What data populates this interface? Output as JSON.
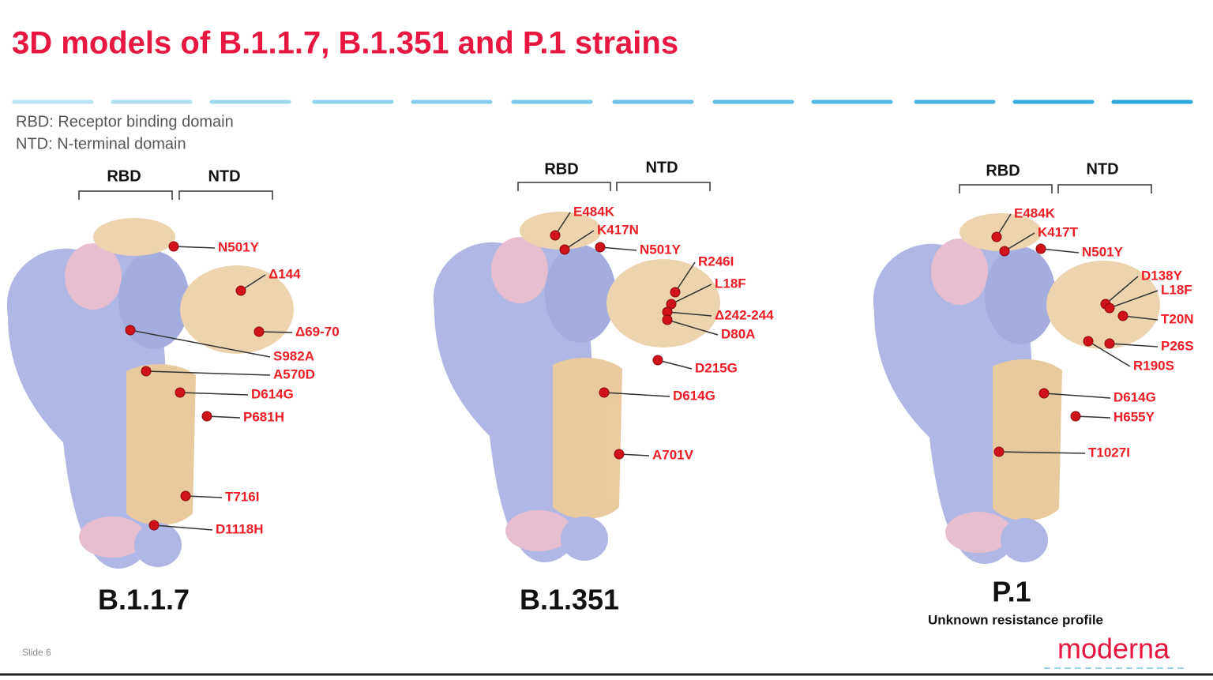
{
  "title": "3D models of B.1.1.7, B.1.351 and P.1 strains",
  "legend": [
    "RBD: Receptor binding domain",
    "NTD: N-terminal domain"
  ],
  "models": [
    {
      "name": "B.1.1.7",
      "domains": [
        "RBD",
        "NTD"
      ],
      "mutations": [
        "N501Y",
        "Δ144",
        "Δ69-70",
        "S982A",
        "A570D",
        "D614G",
        "P681H",
        "T716I",
        "D1118H"
      ]
    },
    {
      "name": "B.1.351",
      "domains": [
        "RBD",
        "NTD"
      ],
      "mutations": [
        "E484K",
        "K417N",
        "N501Y",
        "R246I",
        "L18F",
        "Δ242-244",
        "D80A",
        "D215G",
        "D614G",
        "A701V"
      ]
    },
    {
      "name": "P.1",
      "note": "Unknown resistance profile",
      "domains": [
        "RBD",
        "NTD"
      ],
      "mutations": [
        "E484K",
        "K417T",
        "N501Y",
        "D138Y",
        "L18F",
        "T20N",
        "P26S",
        "R190S",
        "D614G",
        "H655Y",
        "T1027I"
      ]
    }
  ],
  "footer": {
    "slide": "Slide 6",
    "logo": "moderna"
  }
}
